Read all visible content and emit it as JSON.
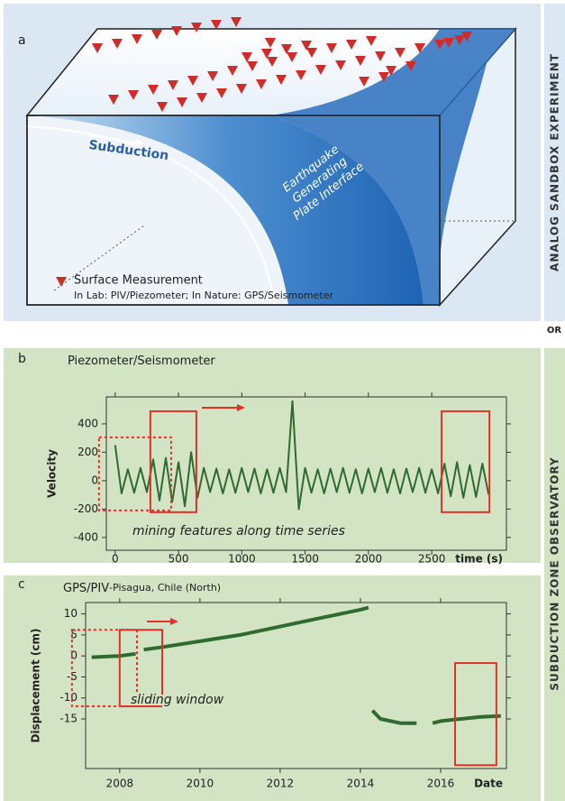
{
  "diagram": {
    "label": "a",
    "subduction": "Subduction",
    "interface_lines": [
      "Earthquake",
      "Generating",
      "Plate Interface"
    ],
    "legend_title": "Surface Measurement",
    "legend_note": "In Lab: PIV/Piezometer; In Nature: GPS/Seismometer"
  },
  "side": {
    "top": "ANALOG SANDBOX EXPERIMENT",
    "middle": "OR",
    "bottom": "SUBDUCTION ZONE OBSERVATORY"
  },
  "chart_data": [
    {
      "type": "line",
      "label": "b",
      "title": "Piezometer/Seismometer",
      "ylabel": "Velocity",
      "xlabel": "time (s)",
      "annotation": "mining features along time series",
      "xlim": [
        -70,
        3090
      ],
      "ylim": [
        -490,
        590
      ],
      "xticks": [
        0,
        500,
        1000,
        1500,
        2000,
        2500
      ],
      "yticks": [
        400,
        200,
        0,
        -200,
        -400
      ],
      "series": [
        {
          "color": "#2f6b2f",
          "x": [
            0,
            50,
            100,
            150,
            200,
            250,
            300,
            350,
            400,
            450,
            500,
            550,
            600,
            650,
            700,
            750,
            800,
            850,
            900,
            950,
            1000,
            1050,
            1100,
            1150,
            1200,
            1250,
            1300,
            1350,
            1400,
            1450,
            1500,
            1550,
            1600,
            1650,
            1700,
            1750,
            1800,
            1850,
            1900,
            1950,
            2000,
            2050,
            2100,
            2150,
            2200,
            2250,
            2300,
            2350,
            2400,
            2450,
            2500,
            2550,
            2600,
            2650,
            2700,
            2750,
            2800,
            2850,
            2900,
            2950
          ],
          "values": [
            250,
            -90,
            80,
            -85,
            90,
            -80,
            150,
            -140,
            160,
            -150,
            130,
            -180,
            200,
            -120,
            90,
            -80,
            85,
            -90,
            80,
            -85,
            90,
            -80,
            85,
            -90,
            80,
            -85,
            90,
            -80,
            560,
            -200,
            90,
            -85,
            80,
            -90,
            85,
            -80,
            90,
            -85,
            80,
            -90,
            85,
            -80,
            90,
            -85,
            80,
            -90,
            85,
            -80,
            90,
            -85,
            80,
            -90,
            120,
            -110,
            130,
            -120,
            110,
            -115,
            120,
            -100
          ]
        }
      ],
      "windows": [
        {
          "x": [
            -128,
            442
          ],
          "y": [
            305,
            -210
          ],
          "style": "dashed"
        },
        {
          "x": [
            278,
            641
          ],
          "y": [
            489,
            -222
          ],
          "style": "solid"
        },
        {
          "x": [
            2578,
            2956
          ],
          "y": [
            489,
            -222
          ],
          "style": "solid"
        }
      ]
    },
    {
      "type": "line",
      "label": "c",
      "title": "GPS/PIV",
      "subtitle": "-Pisagua, Chile (North)",
      "ylabel": "Displacement (cm)",
      "xlabel": "Date",
      "annotation": "sliding window",
      "xlim": [
        2007.15,
        2017.64
      ],
      "ylim": [
        -26.8,
        12.7
      ],
      "xticks": [
        2008,
        2010,
        2012,
        2014,
        2016
      ],
      "yticks": [
        10,
        5,
        0,
        -5,
        -10,
        -15
      ],
      "series": [
        {
          "color": "#2f6b2f",
          "x": [
            2007.3,
            2008,
            2008.4,
            2008.5,
            2008.6,
            2009,
            2010,
            2011,
            2012,
            2013,
            2014,
            2014.2,
            2014.25,
            2014.3,
            2014.5,
            2015,
            2015.4,
            2015.6,
            2015.8,
            2016,
            2017,
            2017.5
          ],
          "values": [
            -0.3,
            0,
            0.5,
            null,
            1.5,
            2,
            3.5,
            5,
            7,
            9,
            11,
            11.5,
            null,
            -13,
            -15,
            -16,
            -16,
            null,
            -16,
            -15.5,
            -14.5,
            -14.3
          ]
        }
      ],
      "windows": [
        {
          "x": [
            2006.81,
            2008.43
          ],
          "y": [
            6.2,
            -12
          ],
          "style": "dashed"
        },
        {
          "x": [
            2008,
            2009.06
          ],
          "y": [
            6.2,
            -12
          ],
          "style": "solid"
        },
        {
          "x": [
            2016.36,
            2017.39
          ],
          "y": [
            -1.7,
            -26
          ],
          "style": "solid"
        }
      ]
    }
  ]
}
